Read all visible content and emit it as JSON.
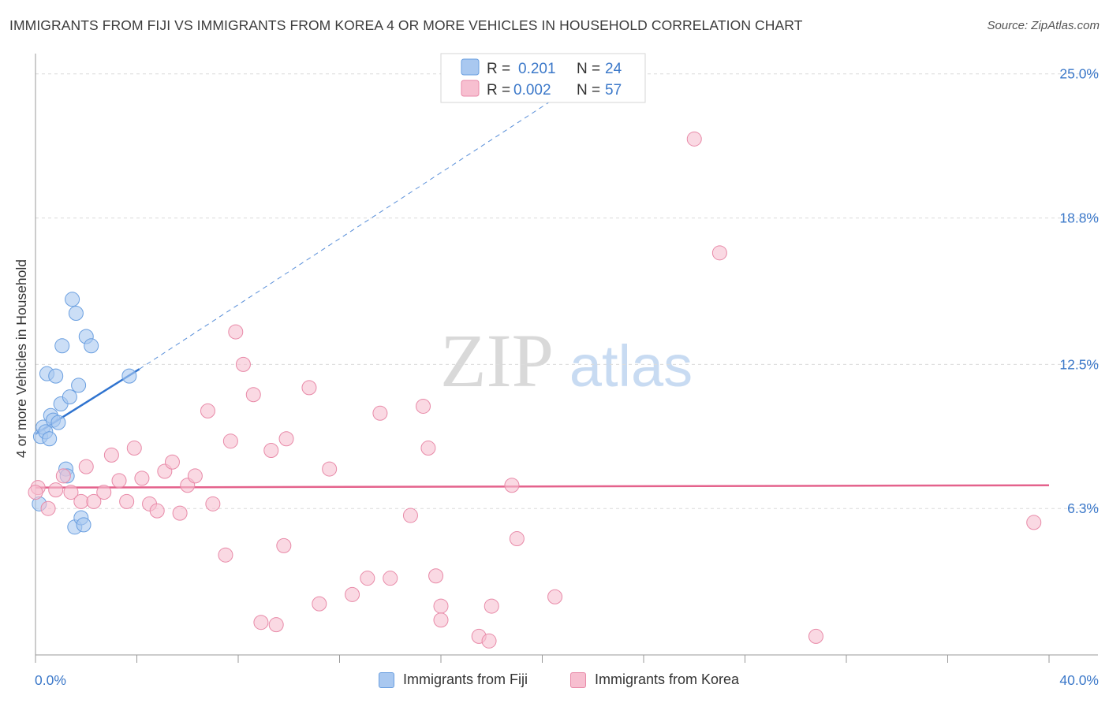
{
  "title": "IMMIGRANTS FROM FIJI VS IMMIGRANTS FROM KOREA 4 OR MORE VEHICLES IN HOUSEHOLD CORRELATION CHART",
  "source": "Source: ZipAtlas.com",
  "watermark": {
    "zip": "ZIP",
    "atlas": "atlas"
  },
  "colors": {
    "fiji_fill": "#a9c8f0",
    "fiji_stroke": "#6a9fe0",
    "fiji_line": "#2f73cf",
    "korea_fill": "#f7bfd0",
    "korea_stroke": "#e88aa8",
    "korea_line": "#e4628c",
    "axis_label": "#3b78c9",
    "grid": "#dcdcdc"
  },
  "legend": {
    "rows": [
      {
        "r_label": "R =",
        "r_value": "0.201",
        "n_label": "N =",
        "n_value": "24"
      },
      {
        "r_label": "R =",
        "r_value": "0.002",
        "n_label": "N =",
        "n_value": "57"
      }
    ]
  },
  "chart_data": {
    "type": "scatter",
    "title": "IMMIGRANTS FROM FIJI VS IMMIGRANTS FROM KOREA 4 OR MORE VEHICLES IN HOUSEHOLD CORRELATION CHART",
    "xlabel": "",
    "ylabel": "4 or more Vehicles in Household",
    "xlim": [
      0,
      40
    ],
    "ylim": [
      0,
      25.5
    ],
    "x_tick_labels": [
      "0.0%",
      "40.0%"
    ],
    "y_ticks": [
      6.3,
      12.5,
      18.8,
      25.0
    ],
    "y_tick_labels": [
      "6.3%",
      "12.5%",
      "18.8%",
      "25.0%"
    ],
    "legend_position": "top-center",
    "series": [
      {
        "name": "Immigrants from Fiji",
        "r": 0.201,
        "n": 24,
        "trend": {
          "x_start": 0.0,
          "y_start": 9.5,
          "x_end": 4.1,
          "y_end": 12.3,
          "dash_x_end": 21.0,
          "dash_y_end": 24.3
        },
        "points": [
          {
            "x": 0.15,
            "y": 6.5
          },
          {
            "x": 0.2,
            "y": 9.4
          },
          {
            "x": 0.3,
            "y": 9.8
          },
          {
            "x": 0.4,
            "y": 9.6
          },
          {
            "x": 0.45,
            "y": 12.1
          },
          {
            "x": 0.55,
            "y": 9.3
          },
          {
            "x": 0.6,
            "y": 10.3
          },
          {
            "x": 0.7,
            "y": 10.1
          },
          {
            "x": 0.8,
            "y": 12.0
          },
          {
            "x": 0.9,
            "y": 10.0
          },
          {
            "x": 1.0,
            "y": 10.8
          },
          {
            "x": 1.05,
            "y": 13.3
          },
          {
            "x": 1.2,
            "y": 8.0
          },
          {
            "x": 1.25,
            "y": 7.7
          },
          {
            "x": 1.35,
            "y": 11.1
          },
          {
            "x": 1.45,
            "y": 15.3
          },
          {
            "x": 1.55,
            "y": 5.5
          },
          {
            "x": 1.6,
            "y": 14.7
          },
          {
            "x": 1.7,
            "y": 11.6
          },
          {
            "x": 1.8,
            "y": 5.9
          },
          {
            "x": 1.9,
            "y": 5.6
          },
          {
            "x": 2.0,
            "y": 13.7
          },
          {
            "x": 2.2,
            "y": 13.3
          },
          {
            "x": 3.7,
            "y": 12.0
          }
        ]
      },
      {
        "name": "Immigrants from Korea",
        "r": 0.002,
        "n": 57,
        "trend": {
          "x_start": 0.0,
          "y_start": 7.2,
          "x_end": 40.0,
          "y_end": 7.3
        },
        "points": [
          {
            "x": 0.1,
            "y": 7.2
          },
          {
            "x": 0.5,
            "y": 6.3
          },
          {
            "x": 0.8,
            "y": 7.1
          },
          {
            "x": 1.1,
            "y": 7.7
          },
          {
            "x": 1.4,
            "y": 7.0
          },
          {
            "x": 1.8,
            "y": 6.6
          },
          {
            "x": 2.0,
            "y": 8.1
          },
          {
            "x": 2.3,
            "y": 6.6
          },
          {
            "x": 2.7,
            "y": 7.0
          },
          {
            "x": 3.0,
            "y": 8.6
          },
          {
            "x": 3.3,
            "y": 7.5
          },
          {
            "x": 3.6,
            "y": 6.6
          },
          {
            "x": 3.9,
            "y": 8.9
          },
          {
            "x": 4.2,
            "y": 7.6
          },
          {
            "x": 4.5,
            "y": 6.5
          },
          {
            "x": 4.8,
            "y": 6.2
          },
          {
            "x": 5.1,
            "y": 7.9
          },
          {
            "x": 5.4,
            "y": 8.3
          },
          {
            "x": 5.7,
            "y": 6.1
          },
          {
            "x": 6.0,
            "y": 7.3
          },
          {
            "x": 6.3,
            "y": 7.7
          },
          {
            "x": 6.8,
            "y": 10.5
          },
          {
            "x": 7.0,
            "y": 6.5
          },
          {
            "x": 7.5,
            "y": 4.3
          },
          {
            "x": 7.7,
            "y": 9.2
          },
          {
            "x": 7.9,
            "y": 13.9
          },
          {
            "x": 8.2,
            "y": 12.5
          },
          {
            "x": 8.6,
            "y": 11.2
          },
          {
            "x": 8.9,
            "y": 1.4
          },
          {
            "x": 9.3,
            "y": 8.8
          },
          {
            "x": 9.5,
            "y": 1.3
          },
          {
            "x": 9.8,
            "y": 4.7
          },
          {
            "x": 9.9,
            "y": 9.3
          },
          {
            "x": 10.8,
            "y": 11.5
          },
          {
            "x": 11.2,
            "y": 2.2
          },
          {
            "x": 11.6,
            "y": 8.0
          },
          {
            "x": 12.5,
            "y": 2.6
          },
          {
            "x": 13.1,
            "y": 3.3
          },
          {
            "x": 13.6,
            "y": 10.4
          },
          {
            "x": 14.0,
            "y": 3.3
          },
          {
            "x": 14.8,
            "y": 6.0
          },
          {
            "x": 15.3,
            "y": 10.7
          },
          {
            "x": 15.5,
            "y": 8.9
          },
          {
            "x": 15.8,
            "y": 3.4
          },
          {
            "x": 16.0,
            "y": 2.1
          },
          {
            "x": 16.0,
            "y": 1.5
          },
          {
            "x": 17.5,
            "y": 0.8
          },
          {
            "x": 17.9,
            "y": 0.6
          },
          {
            "x": 18.0,
            "y": 2.1
          },
          {
            "x": 18.8,
            "y": 7.3
          },
          {
            "x": 19.0,
            "y": 5.0
          },
          {
            "x": 20.5,
            "y": 2.5
          },
          {
            "x": 26.0,
            "y": 22.2
          },
          {
            "x": 27.0,
            "y": 17.3
          },
          {
            "x": 30.8,
            "y": 0.8
          },
          {
            "x": 39.4,
            "y": 5.7
          },
          {
            "x": 0.0,
            "y": 7.0
          }
        ]
      }
    ]
  },
  "bottom_legend": [
    "Immigrants from Fiji",
    "Immigrants from Korea"
  ]
}
